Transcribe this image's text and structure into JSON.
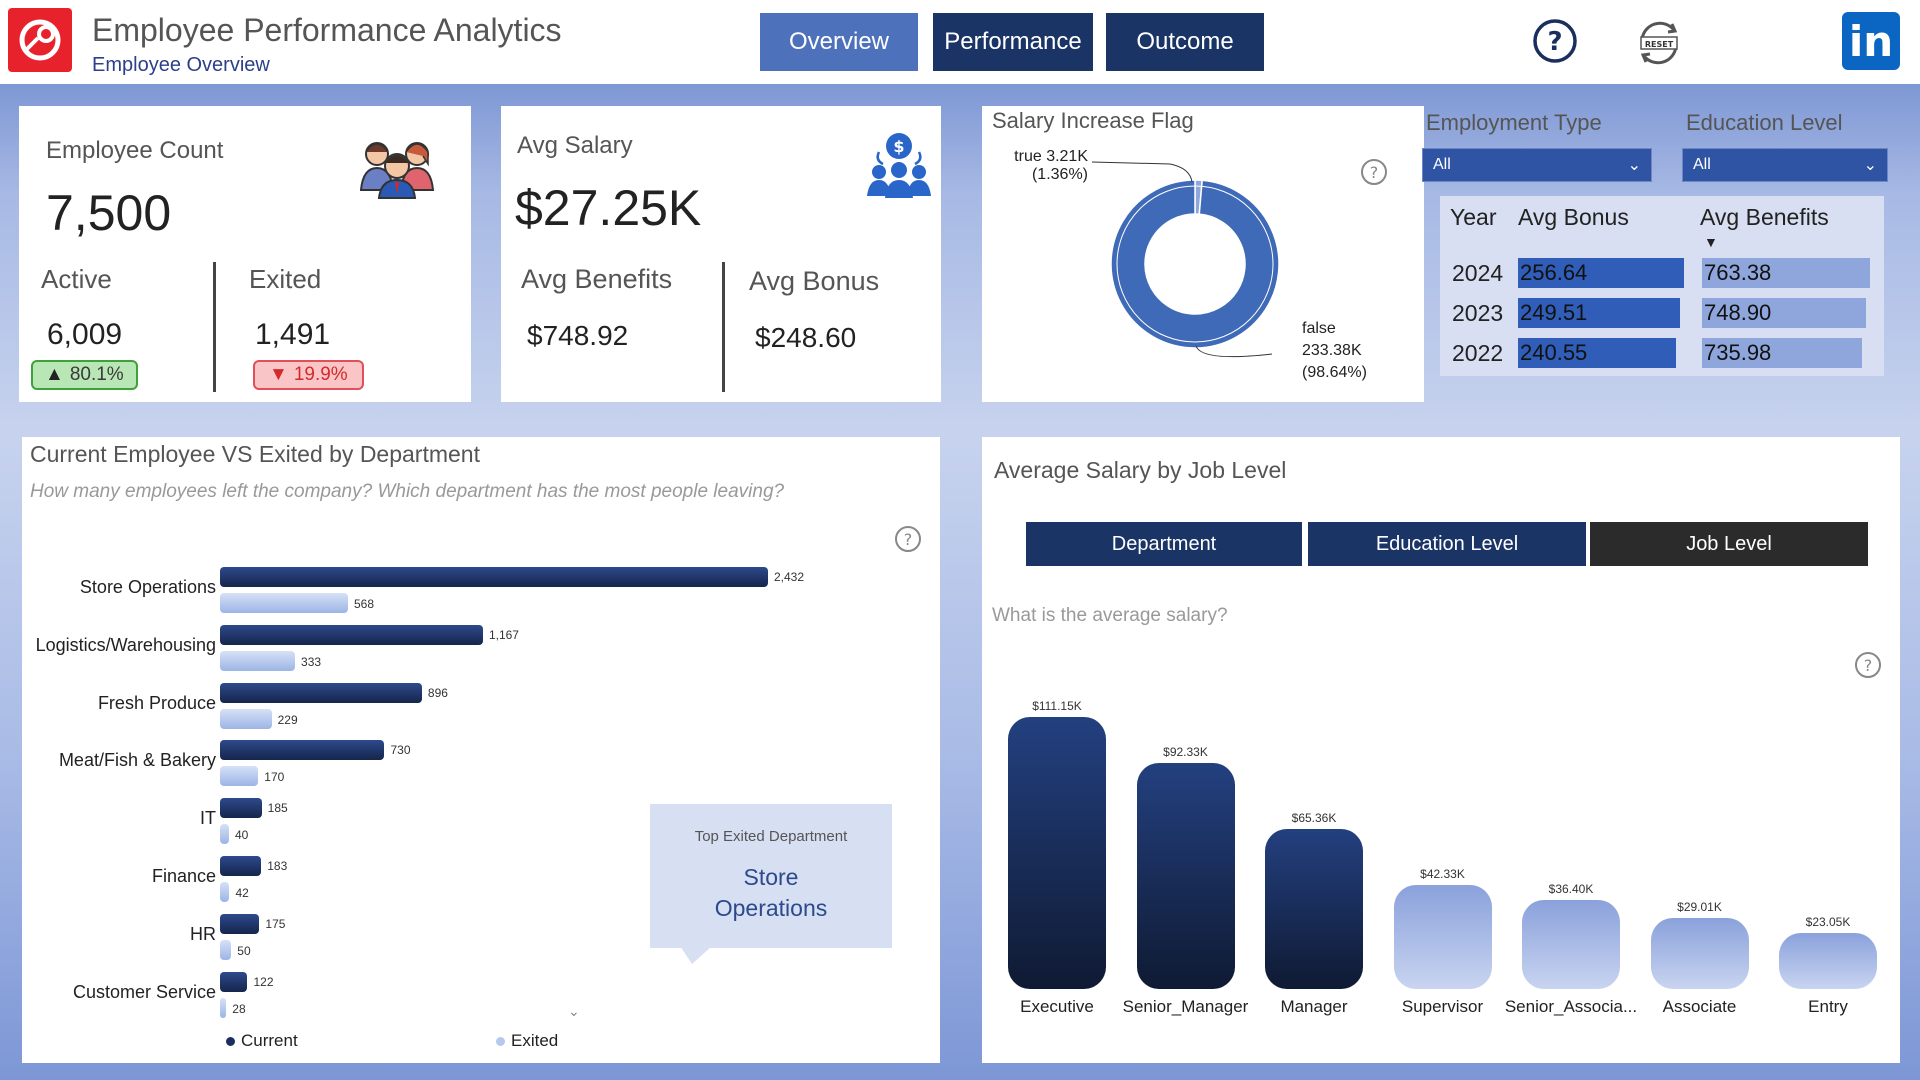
{
  "header": {
    "title": "Employee Performance Analytics",
    "subtitle": "Employee Overview",
    "nav": [
      "Overview",
      "Performance",
      "Outcome"
    ],
    "reset_label": "RESET",
    "linkedin_label": "in",
    "colors": {
      "brand_red": "#e8222d",
      "nav_active": "#4d71ba",
      "nav": "#1b3466"
    }
  },
  "kpi_employee": {
    "label": "Employee Count",
    "value": "7,500",
    "active_label": "Active",
    "active_value": "6,009",
    "active_pct": "80.1%",
    "exited_label": "Exited",
    "exited_value": "1,491",
    "exited_pct": "19.9%"
  },
  "kpi_salary": {
    "label": "Avg Salary",
    "value": "$27.25K",
    "benefits_label": "Avg Benefits",
    "benefits_value": "$748.92",
    "bonus_label": "Avg Bonus",
    "bonus_value": "$248.60"
  },
  "salary_flag": {
    "title": "Salary Increase Flag",
    "true_label": "true 3.21K",
    "true_pct": "(1.36%)",
    "false_label": "false",
    "false_value": "233.38K",
    "false_pct": "(98.64%)",
    "help": "?"
  },
  "filters": {
    "employment_type_label": "Employment Type",
    "employment_type_value": "All",
    "education_level_label": "Education Level",
    "education_level_value": "All"
  },
  "bonus_table": {
    "headers": [
      "Year",
      "Avg Bonus",
      "Avg Benefits"
    ],
    "rows": [
      {
        "year": "2024",
        "bonus": "256.64",
        "benefits": "763.38"
      },
      {
        "year": "2023",
        "bonus": "249.51",
        "benefits": "748.90"
      },
      {
        "year": "2022",
        "bonus": "240.55",
        "benefits": "735.98"
      }
    ]
  },
  "dept_card": {
    "title": "Current Employee VS Exited by Department",
    "question": "How many employees left the company? Which department has the most people leaving?",
    "legend_current": "Current",
    "legend_exited": "Exited",
    "callout_label": "Top Exited Department",
    "callout_value_1": "Store",
    "callout_value_2": "Operations",
    "help": "?"
  },
  "salary_card": {
    "title": "Average Salary by Job Level",
    "question": "What is the average salary?",
    "tabs": [
      "Department",
      "Education Level",
      "Job Level"
    ],
    "help": "?"
  },
  "chart_data": [
    {
      "type": "bar",
      "orientation": "horizontal",
      "categories": [
        "Store Operations",
        "Logistics/Warehousing",
        "Fresh Produce",
        "Meat/Fish & Bakery",
        "IT",
        "Finance",
        "HR",
        "Customer Service"
      ],
      "series": [
        {
          "name": "Current",
          "values": [
            2432,
            1167,
            896,
            730,
            185,
            183,
            175,
            122
          ],
          "labels": [
            "2,432",
            "1,167",
            "896",
            "730",
            "185",
            "183",
            "175",
            "122"
          ],
          "color": "#1b2f5e"
        },
        {
          "name": "Exited",
          "values": [
            568,
            333,
            229,
            170,
            40,
            42,
            50,
            28
          ],
          "labels": [
            "568",
            "333",
            "229",
            "170",
            "40",
            "42",
            "50",
            "28"
          ],
          "color": "#b6c8ee"
        }
      ],
      "legend": "bottom"
    },
    {
      "type": "bar",
      "categories": [
        "Executive",
        "Senior_Manager",
        "Manager",
        "Supervisor",
        "Senior_Associa...",
        "Associate",
        "Entry"
      ],
      "values": [
        111.15,
        92.33,
        65.36,
        42.33,
        36.4,
        29.01,
        23.05
      ],
      "labels": [
        "$111.15K",
        "$92.33K",
        "$65.36K",
        "$42.33K",
        "$36.40K",
        "$29.01K",
        "$23.05K"
      ],
      "units": "K USD"
    },
    {
      "type": "pie",
      "donut": true,
      "categories": [
        "true",
        "false"
      ],
      "values": [
        3.21,
        233.38
      ],
      "units": "K"
    }
  ]
}
